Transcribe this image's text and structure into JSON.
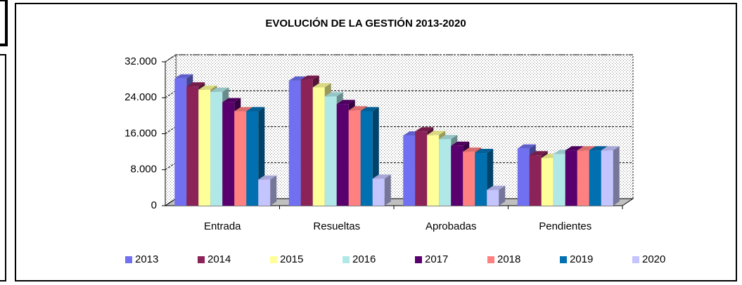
{
  "chart_data": {
    "type": "bar3d",
    "title": "EVOLUCIÓN DE LA GESTIÓN 2013-2020",
    "categories": [
      "Entrada",
      "Resueltas",
      "Aprobadas",
      "Pendientes"
    ],
    "series": [
      {
        "name": "2013",
        "color": "#7070f0",
        "values": [
          28300,
          27800,
          15600,
          12700
        ]
      },
      {
        "name": "2014",
        "color": "#8b2258",
        "values": [
          26500,
          28000,
          16500,
          11200
        ]
      },
      {
        "name": "2015",
        "color": "#ffff99",
        "values": [
          25800,
          26300,
          15700,
          10600
        ]
      },
      {
        "name": "2016",
        "color": "#b0e8e8",
        "values": [
          25300,
          24300,
          14800,
          11500
        ]
      },
      {
        "name": "2017",
        "color": "#5a006e",
        "values": [
          23000,
          22600,
          13300,
          12300
        ]
      },
      {
        "name": "2018",
        "color": "#ff8080",
        "values": [
          21000,
          21200,
          12000,
          12300
        ]
      },
      {
        "name": "2019",
        "color": "#0070b0",
        "values": [
          21000,
          21000,
          11700,
          12300
        ]
      },
      {
        "name": "2020",
        "color": "#c4c4ff",
        "values": [
          5800,
          6000,
          3500,
          12300
        ]
      }
    ],
    "ylim": [
      0,
      32000
    ],
    "yticks": [
      0,
      {
        "value": 8000,
        "label": "8.000"
      },
      {
        "value": 16000,
        "label": "16.000"
      },
      {
        "value": 24000,
        "label": "24.000"
      },
      {
        "value": 32000,
        "label": "32.000"
      }
    ],
    "grid": true,
    "legend": "bottom"
  }
}
